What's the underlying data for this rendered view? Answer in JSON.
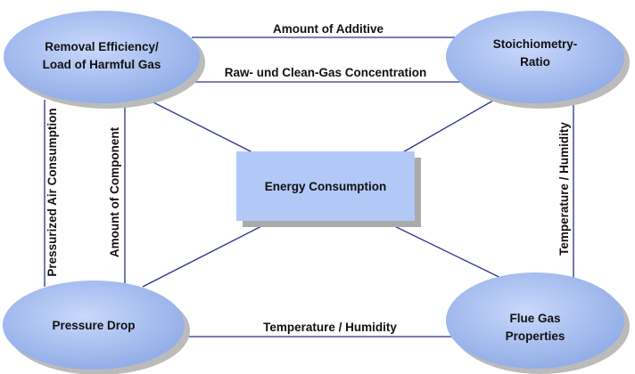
{
  "nodes": [
    {
      "lines": [
        "Removal Efficiency/",
        "Load of Harmful Gas"
      ]
    },
    {
      "lines": [
        "Stoichiometry-",
        "Ratio"
      ]
    },
    {
      "lines": [
        "Energy Consumption"
      ]
    },
    {
      "lines": [
        "Pressure Drop"
      ]
    },
    {
      "lines": [
        "Flue Gas",
        "Properties"
      ]
    }
  ],
  "edges": [
    {
      "label": "Amount of Additive"
    },
    {
      "label": "Raw- und Clean-Gas Concentration"
    },
    {
      "label": "Pressurized Air Consumption"
    },
    {
      "label": "Amount of Component"
    },
    {
      "label": "Temperature / Humidity"
    },
    {
      "label": "Temperature / Humidity"
    }
  ]
}
